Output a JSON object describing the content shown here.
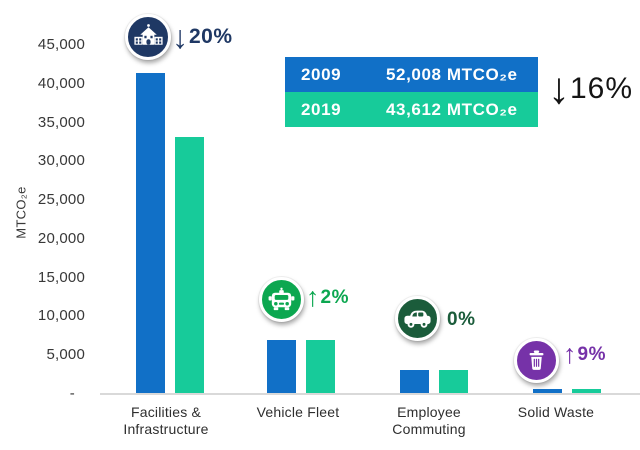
{
  "chart_data": {
    "type": "bar",
    "title": "",
    "xlabel": "",
    "ylabel": "MTCO₂e",
    "categories": [
      "Facilities &\nInfrastructure",
      "Vehicle Fleet",
      "Employee\nCommuting",
      "Solid Waste"
    ],
    "y_ticks": [
      "45,000",
      "40,000",
      "35,000",
      "30,000",
      "25,000",
      "20,000",
      "15,000",
      "10,000",
      "5,000",
      "-"
    ],
    "ylim": [
      0,
      47000
    ],
    "grid": false,
    "series": [
      {
        "name": "2009",
        "color": "#1170C7",
        "values": [
          41400,
          6900,
          3100,
          600
        ]
      },
      {
        "name": "2019",
        "color": "#17CB9A",
        "values": [
          33100,
          7000,
          3100,
          650
        ]
      }
    ],
    "annotations": [
      {
        "category": "Facilities & Infrastructure",
        "icon": "building-icon",
        "circle_color": "#1F3864",
        "arrow": "↓",
        "change": "20%",
        "text_color": "#1F3864"
      },
      {
        "category": "Vehicle Fleet",
        "icon": "car-front-icon",
        "circle_color": "#0CA750",
        "arrow": "↑",
        "change": "2%",
        "text_color": "#0CA750"
      },
      {
        "category": "Employee Commuting",
        "icon": "car-side-icon",
        "circle_color": "#1B5C3B",
        "arrow": "",
        "change": "0%",
        "text_color": "#1B5C3B"
      },
      {
        "category": "Solid Waste",
        "icon": "trash-icon",
        "circle_color": "#7632A8",
        "arrow": "↑",
        "change": "9%",
        "text_color": "#7632A8"
      }
    ]
  },
  "summary_box": {
    "rows": [
      {
        "year": "2009",
        "value": "52,008 MTCO₂e",
        "color": "#1170C7"
      },
      {
        "year": "2019",
        "value": "43,612 MTCO₂e",
        "color": "#17CB9A"
      }
    ],
    "total_change_arrow": "↓",
    "total_change_value": "16%"
  }
}
